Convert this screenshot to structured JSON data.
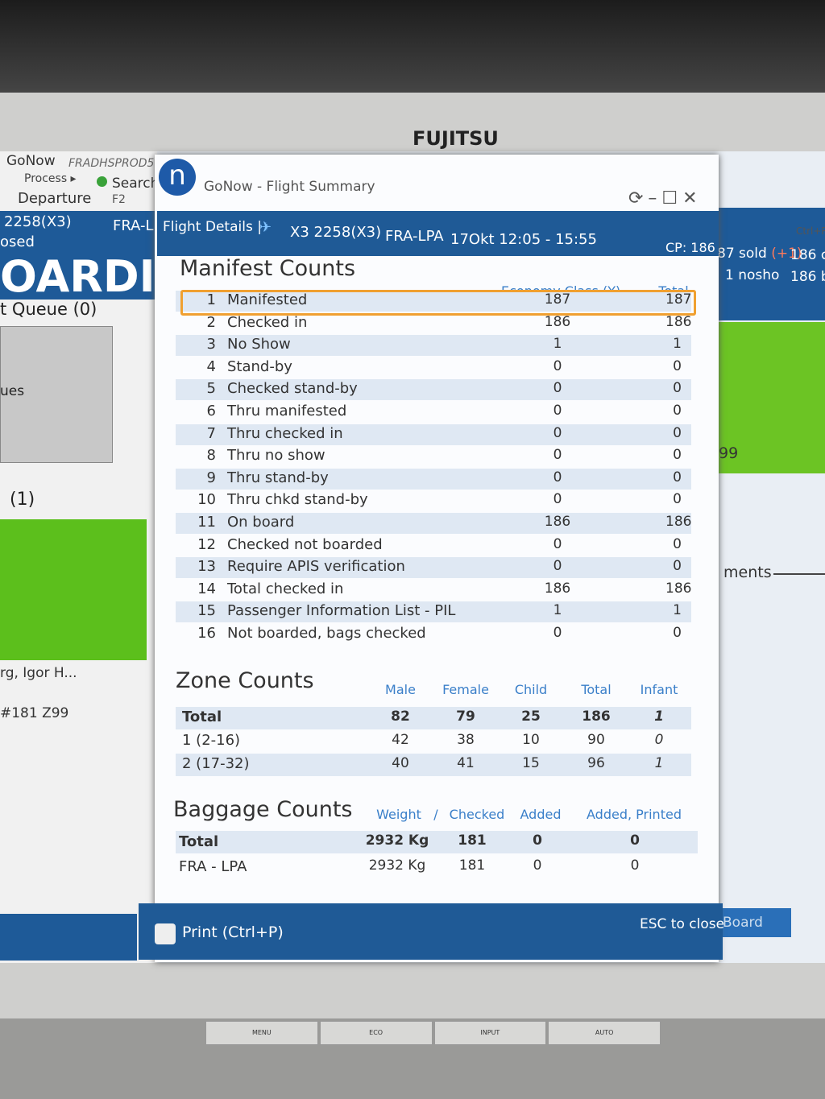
{
  "monitor": {
    "brand": "FUJITSU",
    "buttons": [
      "MENU",
      "ECO",
      "INPUT",
      "AUTO"
    ]
  },
  "background_app": {
    "app": "GoNow",
    "env": "FRADHSPROD5",
    "menu": "Process ▸",
    "search": "Search",
    "tab": "Departure",
    "key": "F2",
    "flight": "2258(X3)",
    "route": "FRA-L",
    "status": "osed",
    "banner": "OARDIN",
    "queue": "t Queue (0)",
    "item1": "ues",
    "item2": "(1)",
    "passenger": "rg, Igor H...",
    "seat": "#181 Z99"
  },
  "right_panel": {
    "shortcut": "Ctrl+R",
    "sold": "87 sold",
    "sold_delta": "(+1)",
    "checked": "186 c",
    "noshow": "1 nosho",
    "boarded": "186 b",
    "number": "99",
    "label": "ments",
    "button": "Board"
  },
  "window": {
    "title": "GoNow - Flight Summary",
    "header": {
      "label": "Flight Details |",
      "flight": "X3 2258(X3)",
      "route": "FRA-LPA",
      "time": "17Okt 12:05 - 15:55",
      "cp": "CP: 186"
    },
    "manifest": {
      "title": "Manifest Counts",
      "columns": [
        "Economy Class (Y)",
        "Total"
      ],
      "rows": [
        [
          1,
          "Manifested",
          187,
          187
        ],
        [
          2,
          "Checked in",
          186,
          186
        ],
        [
          3,
          "No Show",
          1,
          1
        ],
        [
          4,
          "Stand-by",
          0,
          0
        ],
        [
          5,
          "Checked stand-by",
          0,
          0
        ],
        [
          6,
          "Thru manifested",
          0,
          0
        ],
        [
          7,
          "Thru checked in",
          0,
          0
        ],
        [
          8,
          "Thru no show",
          0,
          0
        ],
        [
          9,
          "Thru stand-by",
          0,
          0
        ],
        [
          10,
          "Thru chkd stand-by",
          0,
          0
        ],
        [
          11,
          "On board",
          186,
          186
        ],
        [
          12,
          "Checked not boarded",
          0,
          0
        ],
        [
          13,
          "Require APIS verification",
          0,
          0
        ],
        [
          14,
          "Total checked in",
          186,
          186
        ],
        [
          15,
          "Passenger Information List - PIL",
          1,
          1
        ],
        [
          16,
          "Not boarded, bags checked",
          0,
          0
        ]
      ]
    },
    "zones": {
      "title": "Zone Counts",
      "columns": [
        "Male",
        "Female",
        "Child",
        "Total",
        "Infant"
      ],
      "rows": [
        [
          "Total",
          82,
          79,
          25,
          186,
          1
        ],
        [
          "1 (2-16)",
          42,
          38,
          10,
          90,
          0
        ],
        [
          "2 (17-32)",
          40,
          41,
          15,
          96,
          1
        ]
      ]
    },
    "baggage": {
      "title": "Baggage Counts",
      "columns": [
        "Weight",
        "/",
        "Checked",
        "Added",
        "Added, Printed"
      ],
      "rows": [
        [
          "Total",
          "2932 Kg",
          181,
          0,
          0
        ],
        [
          "FRA - LPA",
          "2932 Kg",
          181,
          0,
          0
        ]
      ]
    },
    "footer": {
      "print": "Print (Ctrl+P)",
      "close": "ESC to close"
    }
  }
}
